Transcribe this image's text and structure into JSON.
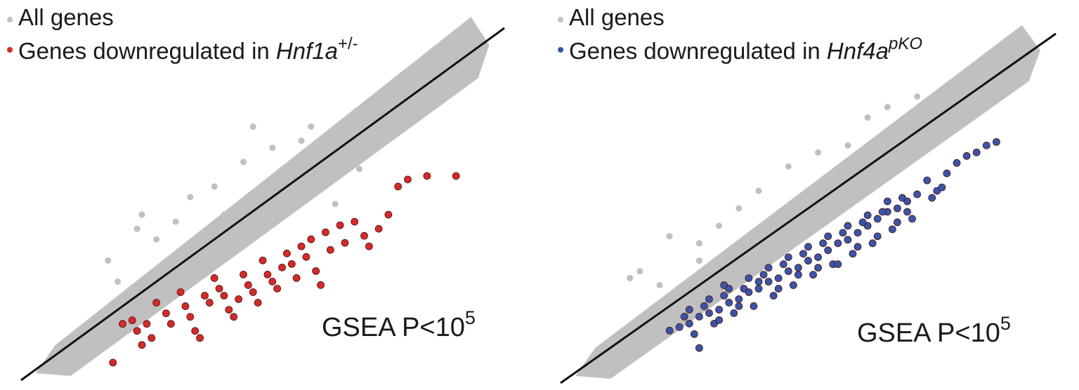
{
  "panels": [
    {
      "legend": [
        {
          "label": "All genes",
          "color": "#c0c0c0"
        },
        {
          "prefix": "Genes downregulated in ",
          "gene": "Hnf1a",
          "sup": "+/-",
          "color": "#d42a2a"
        }
      ],
      "annotation": {
        "text": "GSEA P<10",
        "sup": "5"
      }
    },
    {
      "legend": [
        {
          "label": "All genes",
          "color": "#c0c0c0"
        },
        {
          "prefix": "Genes downregulated in ",
          "gene": "Hnf4a",
          "sup": "pKO",
          "color": "#3a55a8"
        }
      ],
      "annotation": {
        "text": "GSEA P<10",
        "sup": "5"
      }
    }
  ],
  "chart_data": [
    {
      "type": "scatter",
      "title": "",
      "xlabel": "",
      "ylabel": "",
      "xlim": [
        0,
        100
      ],
      "ylim": [
        0,
        100
      ],
      "grid": false,
      "legend_position": "top-left",
      "diagonal": {
        "from": [
          0,
          0
        ],
        "to": [
          100,
          100
        ]
      },
      "background_color": "#c0c0c0",
      "series": [
        {
          "name": "All genes",
          "color": "#c0c0c0",
          "points": [
            [
              10,
              8
            ],
            [
              15,
              14
            ],
            [
              20,
              17
            ],
            [
              25,
              23
            ],
            [
              30,
              27
            ],
            [
              35,
              33
            ],
            [
              40,
              37
            ],
            [
              45,
              43
            ],
            [
              50,
              47
            ],
            [
              55,
              53
            ],
            [
              60,
              57
            ],
            [
              65,
              63
            ],
            [
              70,
              67
            ],
            [
              75,
              73
            ],
            [
              80,
              77
            ],
            [
              20,
              28
            ],
            [
              28,
              40
            ],
            [
              32,
              45
            ],
            [
              40,
              55
            ],
            [
              46,
              62
            ],
            [
              52,
              66
            ],
            [
              58,
              68
            ],
            [
              30,
              23
            ],
            [
              38,
              30
            ],
            [
              44,
              37
            ],
            [
              50,
              43
            ],
            [
              56,
              50
            ],
            [
              62,
              55
            ],
            [
              68,
              62
            ],
            [
              74,
              68
            ],
            [
              83,
              80
            ],
            [
              18,
              34
            ],
            [
              25,
              47
            ],
            [
              60,
              72
            ],
            [
              48,
              72
            ],
            [
              24,
              43
            ],
            [
              35,
              52
            ],
            [
              42,
              47
            ],
            [
              65,
              50
            ],
            [
              70,
              60
            ]
          ]
        },
        {
          "name": "Genes downregulated in Hnf1a+/-",
          "color": "#d42a2a",
          "points": [
            [
              21,
              16
            ],
            [
              23,
              17
            ],
            [
              24,
              14
            ],
            [
              26,
              16
            ],
            [
              27,
              12
            ],
            [
              25,
              10
            ],
            [
              28,
              22
            ],
            [
              30,
              19
            ],
            [
              31,
              16
            ],
            [
              33,
              25
            ],
            [
              34,
              21
            ],
            [
              35,
              18
            ],
            [
              36,
              14
            ],
            [
              37,
              12
            ],
            [
              38,
              24
            ],
            [
              39,
              22
            ],
            [
              40,
              29
            ],
            [
              41,
              26
            ],
            [
              42,
              24
            ],
            [
              43,
              20
            ],
            [
              44,
              18
            ],
            [
              45,
              23
            ],
            [
              46,
              30
            ],
            [
              47,
              27
            ],
            [
              48,
              25
            ],
            [
              49,
              22
            ],
            [
              50,
              34
            ],
            [
              51,
              30
            ],
            [
              52,
              28
            ],
            [
              53,
              26
            ],
            [
              54,
              32
            ],
            [
              55,
              36
            ],
            [
              56,
              33
            ],
            [
              57,
              29
            ],
            [
              58,
              38
            ],
            [
              59,
              35
            ],
            [
              60,
              40
            ],
            [
              61,
              31
            ],
            [
              62,
              27
            ],
            [
              63,
              42
            ],
            [
              64,
              37
            ],
            [
              66,
              44
            ],
            [
              67,
              39
            ],
            [
              69,
              45
            ],
            [
              71,
              41
            ],
            [
              72,
              38
            ],
            [
              74,
              43
            ],
            [
              76,
              47
            ],
            [
              78,
              55
            ],
            [
              80,
              57
            ],
            [
              84,
              58
            ],
            [
              90,
              58
            ],
            [
              19,
              5
            ]
          ]
        }
      ]
    },
    {
      "type": "scatter",
      "title": "",
      "xlabel": "",
      "ylabel": "",
      "xlim": [
        0,
        100
      ],
      "ylim": [
        0,
        100
      ],
      "grid": false,
      "legend_position": "top-left",
      "diagonal": {
        "from": [
          0,
          0
        ],
        "to": [
          100,
          100
        ]
      },
      "background_color": "#c0c0c0",
      "series": [
        {
          "name": "All genes",
          "color": "#c0c0c0",
          "points": [
            [
              10,
              8
            ],
            [
              15,
              14
            ],
            [
              20,
              17
            ],
            [
              25,
              23
            ],
            [
              30,
              27
            ],
            [
              35,
              33
            ],
            [
              40,
              37
            ],
            [
              45,
              43
            ],
            [
              50,
              47
            ],
            [
              55,
              53
            ],
            [
              60,
              57
            ],
            [
              65,
              63
            ],
            [
              70,
              67
            ],
            [
              75,
              73
            ],
            [
              80,
              77
            ],
            [
              20,
              28
            ],
            [
              28,
              40
            ],
            [
              32,
              45
            ],
            [
              40,
              55
            ],
            [
              46,
              62
            ],
            [
              52,
              66
            ],
            [
              58,
              68
            ],
            [
              30,
              23
            ],
            [
              38,
              30
            ],
            [
              44,
              37
            ],
            [
              50,
              43
            ],
            [
              56,
              50
            ],
            [
              62,
              55
            ],
            [
              68,
              62
            ],
            [
              74,
              68
            ],
            [
              83,
              80
            ],
            [
              88,
              86
            ],
            [
              16,
              32
            ],
            [
              22,
              42
            ],
            [
              28,
              35
            ],
            [
              36,
              50
            ],
            [
              62,
              76
            ],
            [
              72,
              82
            ],
            [
              14,
              30
            ],
            [
              66,
              79
            ]
          ]
        },
        {
          "name": "Genes downregulated in Hnf4apKO",
          "color": "#3a55a8",
          "points": [
            [
              22,
              15
            ],
            [
              24,
              16
            ],
            [
              26,
              17
            ],
            [
              28,
              19
            ],
            [
              30,
              20
            ],
            [
              32,
              21
            ],
            [
              34,
              23
            ],
            [
              36,
              24
            ],
            [
              38,
              26
            ],
            [
              40,
              27
            ],
            [
              42,
              29
            ],
            [
              44,
              30
            ],
            [
              46,
              32
            ],
            [
              48,
              33
            ],
            [
              50,
              35
            ],
            [
              52,
              36
            ],
            [
              54,
              38
            ],
            [
              56,
              40
            ],
            [
              58,
              41
            ],
            [
              60,
              43
            ],
            [
              62,
              45
            ],
            [
              64,
              47
            ],
            [
              66,
              49
            ],
            [
              68,
              50
            ],
            [
              70,
              52
            ],
            [
              72,
              54
            ],
            [
              25,
              19
            ],
            [
              29,
              22
            ],
            [
              33,
              25
            ],
            [
              37,
              27
            ],
            [
              41,
              31
            ],
            [
              45,
              34
            ],
            [
              49,
              37
            ],
            [
              53,
              40
            ],
            [
              57,
              43
            ],
            [
              61,
              46
            ],
            [
              65,
              49
            ],
            [
              69,
              53
            ],
            [
              27,
              14
            ],
            [
              31,
              17
            ],
            [
              35,
              20
            ],
            [
              39,
              22
            ],
            [
              43,
              25
            ],
            [
              47,
              28
            ],
            [
              51,
              31
            ],
            [
              55,
              34
            ],
            [
              59,
              37
            ],
            [
              63,
              40
            ],
            [
              67,
              44
            ],
            [
              71,
              47
            ],
            [
              30,
              24
            ],
            [
              34,
              27
            ],
            [
              38,
              30
            ],
            [
              42,
              33
            ],
            [
              46,
              36
            ],
            [
              50,
              39
            ],
            [
              54,
              42
            ],
            [
              58,
              45
            ],
            [
              62,
              48
            ],
            [
              66,
              52
            ],
            [
              74,
              58
            ],
            [
              78,
              60
            ],
            [
              80,
              63
            ],
            [
              82,
              65
            ],
            [
              86,
              68
            ],
            [
              88,
              69
            ],
            [
              84,
              66
            ],
            [
              32,
              18
            ],
            [
              44,
              27
            ],
            [
              56,
              34
            ],
            [
              48,
              31
            ],
            [
              60,
              39
            ],
            [
              28,
              10
            ],
            [
              76,
              55
            ],
            [
              70,
              49
            ],
            [
              40,
              29
            ],
            [
              36,
              22
            ],
            [
              52,
              33
            ],
            [
              64,
              42
            ],
            [
              68,
              46
            ],
            [
              26,
              21
            ],
            [
              33,
              28
            ],
            [
              75,
              53
            ],
            [
              77,
              56
            ]
          ]
        }
      ]
    }
  ]
}
